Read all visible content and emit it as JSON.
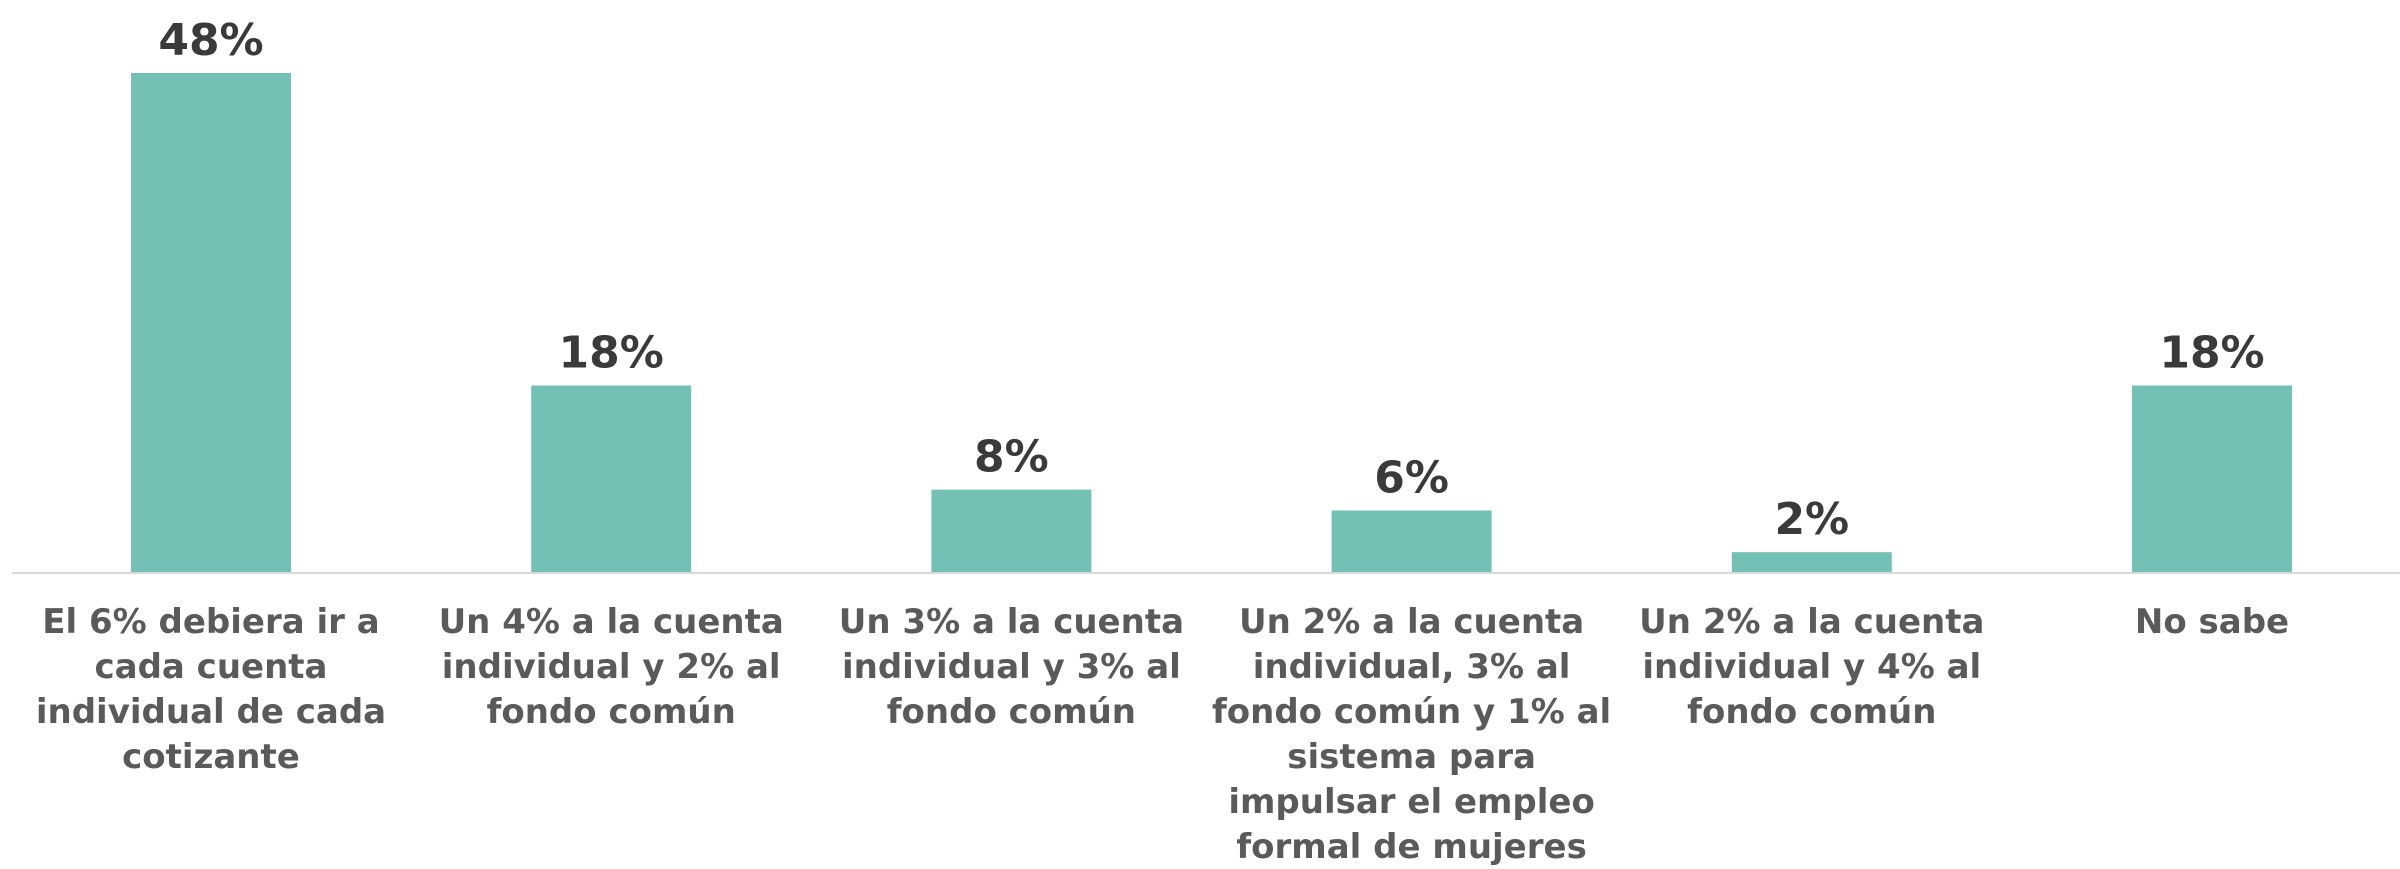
{
  "chart_data": {
    "type": "bar",
    "categories": [
      [
        "El 6% debiera ir a",
        "cada cuenta",
        "individual de cada",
        "cotizante"
      ],
      [
        "Un 4% a la cuenta",
        "individual y 2% al",
        "fondo común"
      ],
      [
        "Un 3% a la cuenta",
        "individual y 3% al",
        "fondo común"
      ],
      [
        "Un 2% a la cuenta",
        "individual, 3% al",
        "fondo común y 1% al",
        "sistema para",
        "impulsar el empleo",
        "formal de mujeres"
      ],
      [
        "Un 2% a la cuenta",
        "individual y 4% al",
        "fondo común"
      ],
      [
        "No sabe"
      ]
    ],
    "values": [
      48,
      18,
      8,
      6,
      2,
      18
    ],
    "data_labels": [
      "48%",
      "18%",
      "8%",
      "6%",
      "2%",
      "18%"
    ],
    "title": "",
    "xlabel": "",
    "ylabel": "",
    "ylim": [
      0,
      55
    ],
    "grid": false,
    "colors": {
      "bar": "#72c1b4",
      "axis": "#d9d9d9",
      "value_text": "#3a3a3a",
      "category_text": "#5a5a5a"
    }
  }
}
